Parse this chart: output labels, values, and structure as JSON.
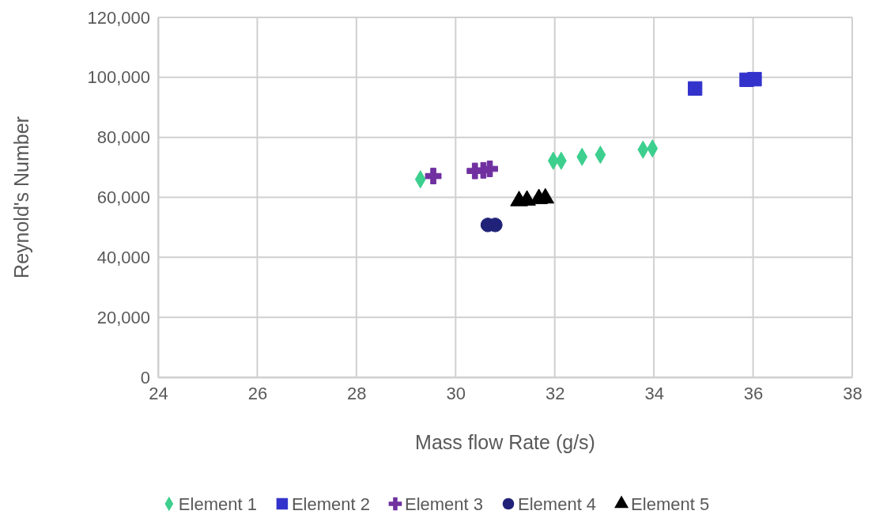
{
  "chart_data": {
    "type": "scatter",
    "xlabel": "Mass flow Rate (g/s)",
    "ylabel": "Reynold's Number",
    "xlim": [
      24,
      38
    ],
    "xticks": [
      24,
      26,
      28,
      30,
      32,
      34,
      36,
      38
    ],
    "ylim": [
      0,
      120000
    ],
    "yticks": [
      {
        "value": 0,
        "label": "0"
      },
      {
        "value": 20000,
        "label": "20,000"
      },
      {
        "value": 40000,
        "label": "40,000"
      },
      {
        "value": 60000,
        "label": "60,000"
      },
      {
        "value": 80000,
        "label": "80,000"
      },
      {
        "value": 100000,
        "label": "100,000"
      },
      {
        "value": 120000,
        "label": "120,000"
      }
    ],
    "grid": true,
    "legend": "bottom",
    "series": [
      {
        "name": "Element 1",
        "color": "#3ccf8e",
        "marker": "diamond",
        "x": [
          29.29,
          31.97,
          32.13,
          32.55,
          32.92,
          33.78,
          33.97
        ],
        "values": [
          66000,
          72200,
          72200,
          73500,
          74200,
          75900,
          76300
        ]
      },
      {
        "name": "Element 2",
        "color": "#3333cc",
        "marker": "square",
        "x": [
          34.83,
          35.87,
          36.03
        ],
        "values": [
          96300,
          99200,
          99400
        ]
      },
      {
        "name": "Element 3",
        "color": "#7030a0",
        "marker": "cross",
        "x": [
          29.55,
          30.39,
          30.56,
          30.69
        ],
        "values": [
          67100,
          68800,
          69000,
          69500
        ]
      },
      {
        "name": "Element 4",
        "color": "#1f2278",
        "marker": "circle",
        "x": [
          30.65,
          30.8
        ],
        "values": [
          50800,
          50800
        ]
      },
      {
        "name": "Element 5",
        "color": "#000000",
        "marker": "triangle",
        "x": [
          31.28,
          31.44,
          31.68,
          31.81
        ],
        "values": [
          58800,
          59000,
          59500,
          59700
        ]
      }
    ]
  }
}
